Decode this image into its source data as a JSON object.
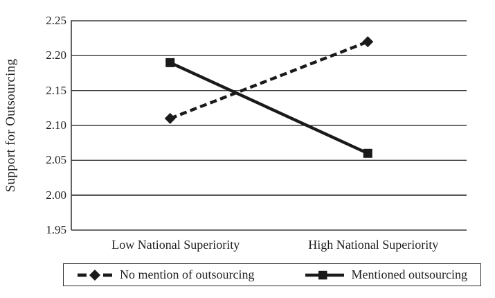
{
  "chart_data": {
    "type": "line",
    "title": "",
    "xlabel": "",
    "ylabel": "Support for Outsourcing",
    "categories": [
      "Low National Superiority",
      "High National Superiority"
    ],
    "series": [
      {
        "name": "No mention of outsourcing",
        "values": [
          2.11,
          2.22
        ],
        "line_style": "dashed",
        "marker": "diamond"
      },
      {
        "name": "Mentioned outsourcing",
        "values": [
          2.19,
          2.06
        ],
        "line_style": "solid",
        "marker": "square"
      }
    ],
    "ylim": [
      1.95,
      2.25
    ],
    "ytick_step": 0.05,
    "yticks": [
      "2.25",
      "2.20",
      "2.15",
      "2.10",
      "2.05",
      "2.00",
      "1.95"
    ],
    "grid": "horizontal",
    "legend_position": "bottom",
    "ink_color": "#1a1a1a",
    "grid_color": "#3c3c3c"
  }
}
